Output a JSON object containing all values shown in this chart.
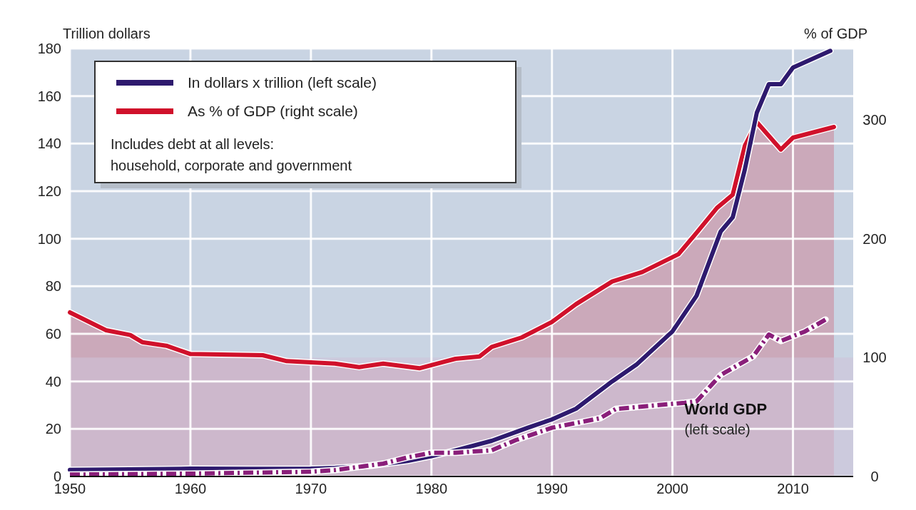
{
  "chart_data": {
    "type": "line",
    "ylabel": "Trillion dollars",
    "y2label": "% of GDP",
    "xlim": [
      1950,
      2015
    ],
    "xticks": [
      1950,
      1960,
      1970,
      1980,
      1990,
      2000,
      2010
    ],
    "ylim": [
      0,
      180
    ],
    "yticks": [
      0,
      20,
      40,
      60,
      80,
      100,
      120,
      140,
      160,
      180
    ],
    "y2lim": [
      0,
      360
    ],
    "y2ticks": [
      0,
      100,
      200,
      300
    ],
    "grid": true,
    "legend": "top left",
    "bands": [
      {
        "axis": "y2",
        "from": 0,
        "to": 100,
        "color": "#cfc3d8"
      }
    ],
    "annotations": [
      "Includes debt at all levels:\nhousehold, corporate and government",
      "(left scale)"
    ],
    "series": [
      {
        "name": "As % of GDP (right scale)",
        "type": "area",
        "axis": "y2",
        "color": "#d0112b",
        "x": [
          1950,
          1953,
          1955,
          1956,
          1958,
          1960,
          1966,
          1968,
          1972,
          1974,
          1976,
          1979,
          1982,
          1984,
          1985,
          1987.5,
          1990,
          1992,
          1995,
          1997.5,
          2000.5,
          2002,
          2003.7,
          2005,
          2006,
          2007,
          2009,
          2010,
          2013.4
        ],
        "values": [
          138,
          123,
          119,
          113,
          110,
          103,
          102,
          97,
          95,
          92,
          95,
          91,
          99,
          101,
          109,
          117,
          130,
          145,
          164,
          172,
          187,
          205,
          226,
          237,
          278,
          298,
          275,
          285,
          294
        ]
      },
      {
        "name": "In dollars x trillion (left scale)",
        "color": "#2e1a6e",
        "x": [
          1950,
          1955,
          1960,
          1965,
          1970,
          1972,
          1975,
          1978,
          1980,
          1982,
          1985,
          1988,
          1990,
          1992,
          1995,
          1997,
          2000,
          2002,
          2004,
          2005,
          2006,
          2007,
          2008,
          2009,
          2010,
          2013.1
        ],
        "values": [
          2.8,
          3,
          3.3,
          3.2,
          3.3,
          3.6,
          4.5,
          6.5,
          8.5,
          11,
          15,
          20.5,
          24,
          28.5,
          40,
          47,
          61,
          76,
          103,
          109,
          129,
          153,
          165,
          165,
          172,
          179
        ]
      },
      {
        "name": "World GDP",
        "type": "line",
        "line_style": "dashed",
        "color": "#8a1f7a",
        "x": [
          1950,
          1960,
          1970,
          1972,
          1976,
          1978,
          1980,
          1982,
          1985,
          1987,
          1990,
          1994,
          1995.3,
          2001,
          2002,
          2004,
          2006.7,
          2008,
          2009,
          2011,
          2012.7
        ],
        "values": [
          0.8,
          1.2,
          2,
          2.7,
          5.4,
          8,
          10,
          10,
          11,
          15.3,
          20.5,
          24.5,
          28.4,
          31,
          31.6,
          42.7,
          50.5,
          59.7,
          57,
          61,
          66
        ]
      }
    ]
  }
}
